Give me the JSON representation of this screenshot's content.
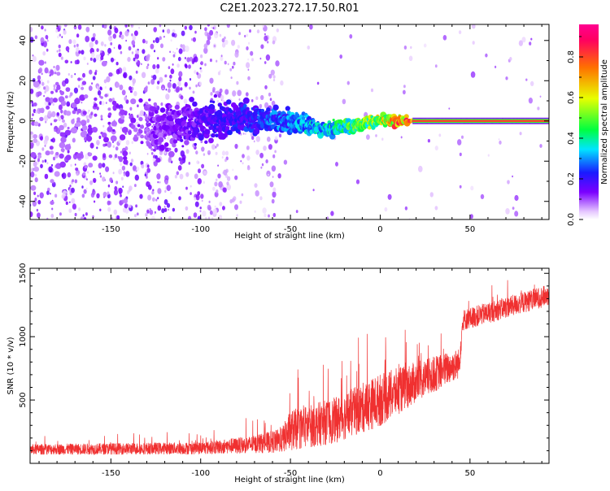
{
  "title": "C2E1.2023.272.17.50.R01",
  "chart_data": [
    {
      "type": "heatmap",
      "xlabel": "Height of straight line (km)",
      "ylabel": "Frequency (Hz)",
      "xlim": [
        -195,
        94
      ],
      "ylim": [
        -49,
        48
      ],
      "xticks": [
        -150,
        -100,
        -50,
        0,
        50
      ],
      "yticks": [
        -40,
        -20,
        0,
        20,
        40
      ],
      "colorbar": {
        "label": "Normalized spectral amplitude",
        "range": [
          0.0,
          0.96
        ],
        "ticks": [
          0.0,
          0.2,
          0.4,
          0.6,
          0.8
        ],
        "colormap": [
          "#ffffff",
          "#e6c8ff",
          "#7b00ff",
          "#1a1aff",
          "#00e5ff",
          "#00ff40",
          "#e8ff00",
          "#ff7000",
          "#ff0060"
        ]
      },
      "trace": [
        {
          "x": -195,
          "y": 0,
          "width": 40,
          "amplitude": 0.08
        },
        {
          "x": -120,
          "y": -4,
          "width": 14,
          "amplitude": 0.12
        },
        {
          "x": -80,
          "y": 2,
          "width": 8,
          "amplitude": 0.2
        },
        {
          "x": -50,
          "y": 0,
          "width": 6,
          "amplitude": 0.28
        },
        {
          "x": -30,
          "y": -4,
          "width": 4,
          "amplitude": 0.35
        },
        {
          "x": 0,
          "y": 0,
          "width": 3,
          "amplitude": 0.55
        },
        {
          "x": 20,
          "y": 0,
          "width": 2,
          "amplitude": 0.85
        },
        {
          "x": 94,
          "y": 0,
          "width": 2,
          "amplitude": 0.95
        }
      ]
    },
    {
      "type": "line",
      "xlabel": "Height of straight line (km)",
      "ylabel": "SNR (10 * v/v)",
      "xlim": [
        -195,
        94
      ],
      "ylim": [
        0,
        1540
      ],
      "xticks": [
        -150,
        -100,
        -50,
        0,
        50
      ],
      "yticks": [
        500,
        1000,
        1500
      ],
      "color": "#f03030",
      "envelope": [
        {
          "x": -195,
          "mean": 110,
          "spread": 60
        },
        {
          "x": -100,
          "mean": 120,
          "spread": 70
        },
        {
          "x": -70,
          "mean": 150,
          "spread": 100
        },
        {
          "x": -55,
          "mean": 180,
          "spread": 140
        },
        {
          "x": -50,
          "mean": 260,
          "spread": 230
        },
        {
          "x": -25,
          "mean": 340,
          "spread": 260
        },
        {
          "x": 0,
          "mean": 500,
          "spread": 300
        },
        {
          "x": 20,
          "mean": 640,
          "spread": 230
        },
        {
          "x": 44,
          "mean": 790,
          "spread": 170
        },
        {
          "x": 46,
          "mean": 1130,
          "spread": 120
        },
        {
          "x": 94,
          "mean": 1330,
          "spread": 120
        }
      ]
    }
  ]
}
